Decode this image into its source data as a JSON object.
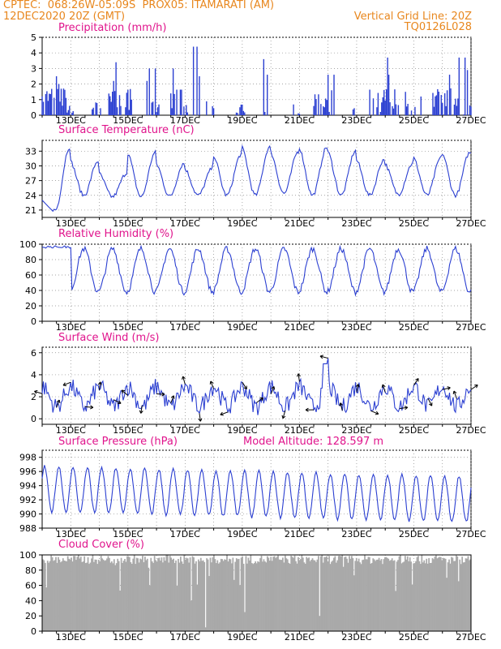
{
  "header": {
    "line1_left": "CPTEC:",
    "coords": "068:26W-05:09S",
    "station": "PROX05: ITAMARATI (AM)",
    "date": "12DEC2020 20Z (GMT)",
    "grid_line": "Vertical Grid Line: 20Z",
    "code": "TQ0126L028",
    "color": "#e8871e"
  },
  "colors": {
    "title": "#e0148c",
    "series": "#2b3fd1",
    "cloud": "#a9a9a9",
    "arrow": "#000000"
  },
  "x_ticks": [
    "13DEC",
    "15DEC",
    "17DEC",
    "19DEC",
    "21DEC",
    "23DEC",
    "25DEC",
    "27DEC"
  ],
  "model_altitude": "Model Altitude: 128.597 m",
  "chart_data": [
    {
      "type": "bar",
      "title": "Precipitation (mm/h)",
      "ylim": [
        0,
        5
      ],
      "yticks": [
        "0",
        "1",
        "2",
        "3",
        "4",
        "5"
      ],
      "x_range": [
        "12DEC20Z",
        "27DEC20Z"
      ],
      "values_note": "hourly bars",
      "values": []
    },
    {
      "type": "line",
      "title": "Surface Temperature (nC)",
      "ylim": [
        19.5,
        35.2
      ],
      "yticks": [
        "21",
        "24",
        "27",
        "30",
        "33"
      ],
      "values": []
    },
    {
      "type": "line",
      "title": "Relative Humidity (%)",
      "ylim": [
        0,
        100
      ],
      "yticks": [
        "0",
        "20",
        "40",
        "60",
        "80",
        "100"
      ],
      "values": []
    },
    {
      "type": "line",
      "title": "Surface Wind (m/s)",
      "ylim": [
        -0.5,
        6.5
      ],
      "yticks": [
        "0",
        "2",
        "4",
        "6"
      ],
      "values": [],
      "arrows": []
    },
    {
      "type": "line",
      "title": "Surface Pressure (hPa)",
      "ylim": [
        988,
        999
      ],
      "yticks": [
        "988",
        "990",
        "992",
        "994",
        "996",
        "998"
      ],
      "values": []
    },
    {
      "type": "bar",
      "title": "Cloud Cover (%)",
      "ylim": [
        0,
        100
      ],
      "yticks": [
        "0",
        "20",
        "40",
        "60",
        "80",
        "100"
      ],
      "values": []
    }
  ]
}
